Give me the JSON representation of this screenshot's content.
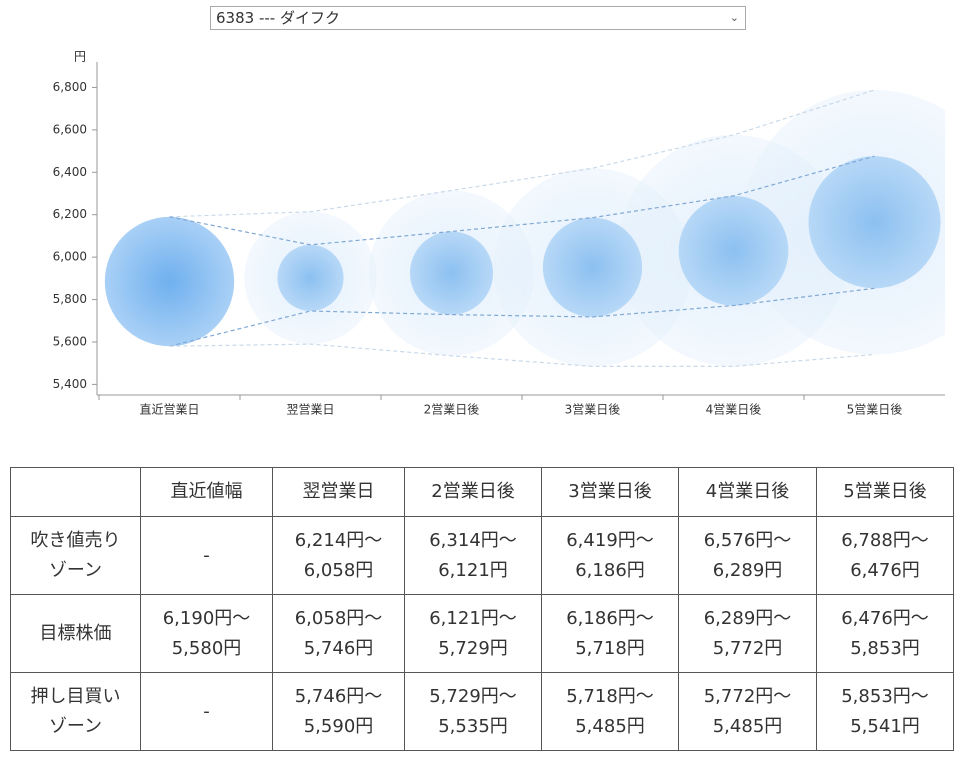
{
  "selector": {
    "selected": "6383 --- ダイフク"
  },
  "chart_data": {
    "type": "bubble-range",
    "unit_label": "円",
    "categories": [
      "直近営業日",
      "翌営業日",
      "2営業日後",
      "3営業日後",
      "4営業日後",
      "5営業日後"
    ],
    "ylim": [
      5350,
      6920
    ],
    "yticks": [
      {
        "value": 5400,
        "label": "5,400"
      },
      {
        "value": 5600,
        "label": "5,600"
      },
      {
        "value": 5800,
        "label": "5,800"
      },
      {
        "value": 6000,
        "label": "6,000"
      },
      {
        "value": 6200,
        "label": "6,200"
      },
      {
        "value": 6400,
        "label": "6,400"
      },
      {
        "value": 6600,
        "label": "6,600"
      },
      {
        "value": 6800,
        "label": "6,800"
      }
    ],
    "series": [
      {
        "color": "#c9d9ea",
        "values": [
          null,
          6214,
          6314,
          6419,
          6576,
          6788
        ]
      },
      {
        "color": "#7fa8d4",
        "values": [
          6190,
          6058,
          6121,
          6186,
          6289,
          6476
        ]
      },
      {
        "color": "#7fa8d4",
        "values": [
          5580,
          5746,
          5729,
          5718,
          5772,
          5853
        ]
      },
      {
        "color": "#c9d9ea",
        "values": [
          null,
          5590,
          5535,
          5485,
          5485,
          5541
        ]
      }
    ]
  },
  "table": {
    "header": [
      "直近値幅",
      "翌営業日",
      "2営業日後",
      "3営業日後",
      "4営業日後",
      "5営業日後"
    ],
    "rows": [
      {
        "label": [
          "吹き値売り",
          "ゾーン"
        ],
        "cells": [
          [
            "-"
          ],
          [
            "6,214円〜",
            "6,058円"
          ],
          [
            "6,314円〜",
            "6,121円"
          ],
          [
            "6,419円〜",
            "6,186円"
          ],
          [
            "6,576円〜",
            "6,289円"
          ],
          [
            "6,788円〜",
            "6,476円"
          ]
        ]
      },
      {
        "label": [
          "目標株価"
        ],
        "cells": [
          [
            "6,190円〜",
            "5,580円"
          ],
          [
            "6,058円〜",
            "5,746円"
          ],
          [
            "6,121円〜",
            "5,729円"
          ],
          [
            "6,186円〜",
            "5,718円"
          ],
          [
            "6,289円〜",
            "5,772円"
          ],
          [
            "6,476円〜",
            "5,853円"
          ]
        ]
      },
      {
        "label": [
          "押し目買い",
          "ゾーン"
        ],
        "cells": [
          [
            "-"
          ],
          [
            "5,746円〜",
            "5,590円"
          ],
          [
            "5,729円〜",
            "5,535円"
          ],
          [
            "5,718円〜",
            "5,485円"
          ],
          [
            "5,772円〜",
            "5,485円"
          ],
          [
            "5,853円〜",
            "5,541円"
          ]
        ]
      }
    ]
  }
}
